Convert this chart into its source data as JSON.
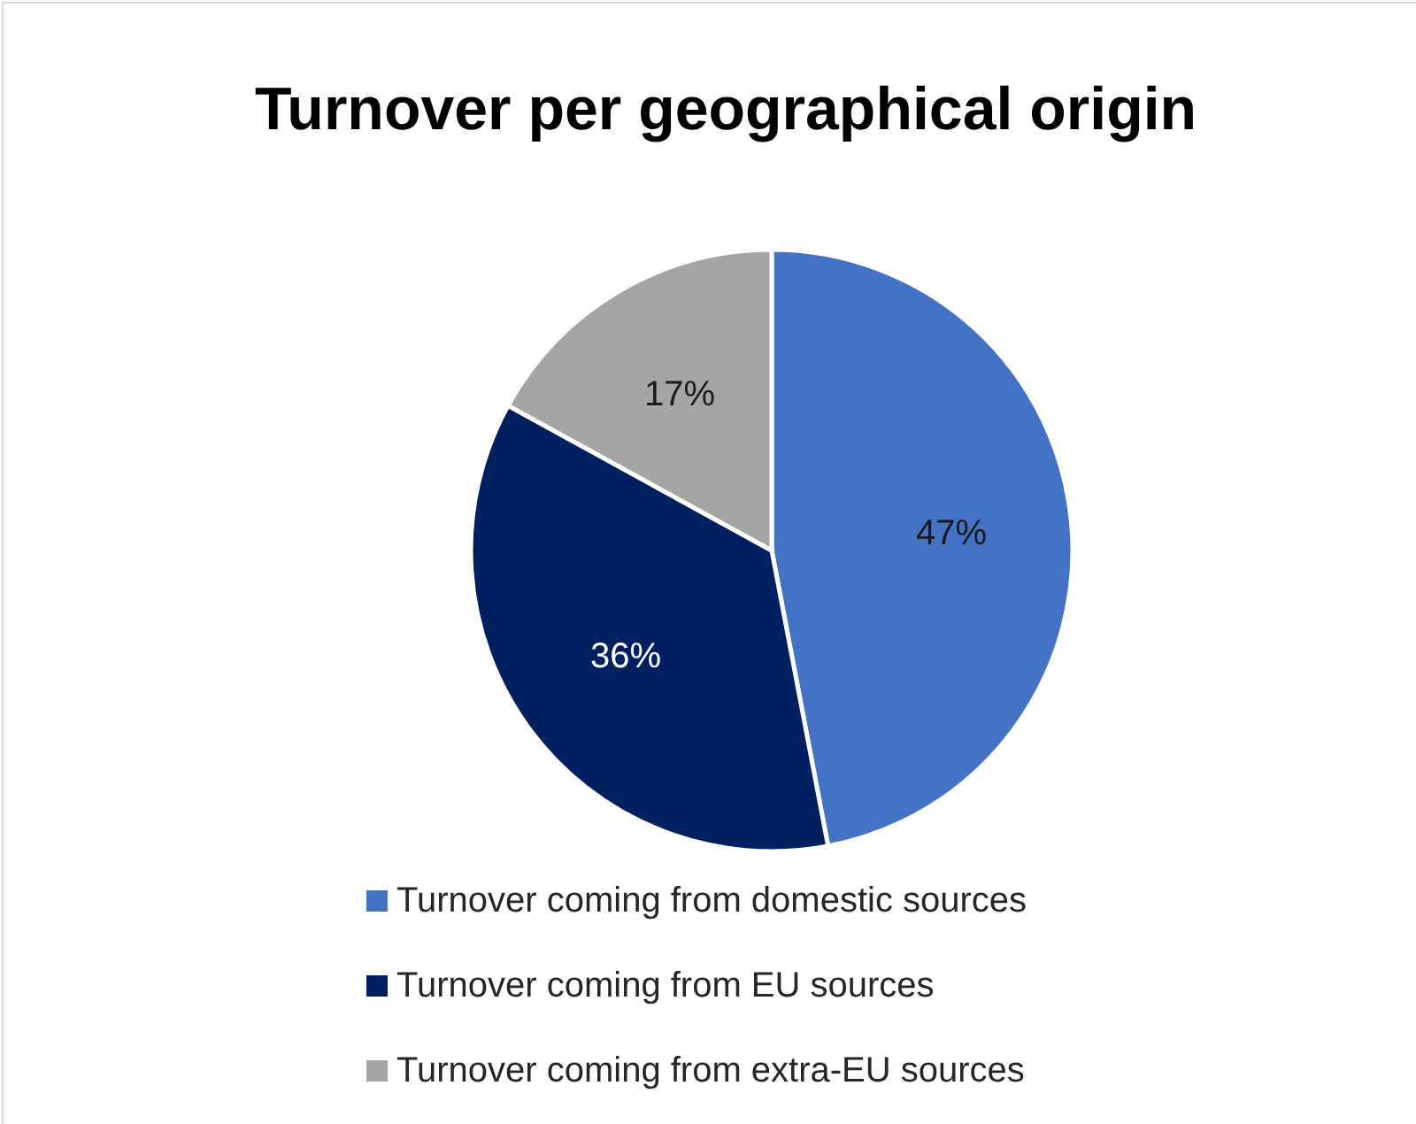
{
  "chart_data": {
    "type": "pie",
    "title": "Turnover per geographical origin",
    "categories": [
      "Turnover coming from domestic sources",
      "Turnover coming from EU sources",
      "Turnover coming from extra-EU sources"
    ],
    "values": [
      47,
      36,
      17
    ],
    "colors": [
      "#4472c4",
      "#002060",
      "#a5a5a5"
    ],
    "value_labels": [
      "47%",
      "36%",
      "17%"
    ],
    "legend": "bottom"
  }
}
